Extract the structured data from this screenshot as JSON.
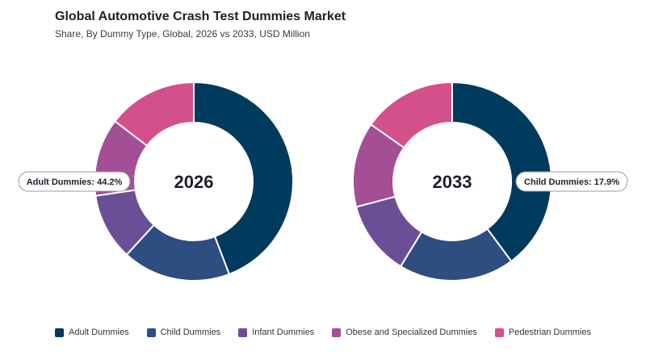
{
  "title": "Global Automotive Crash Test Dummies Market",
  "subtitle": "Share, By Dummy Type, Global, 2026 vs 2033, USD Million",
  "chart_data": {
    "type": "pie",
    "variant": "donut",
    "categories": [
      "Adult Dummies",
      "Child Dummies",
      "Infant Dummies",
      "Obese and Specialized Dummies",
      "Pedestrian Dummies"
    ],
    "colors": [
      "#003a5c",
      "#2e4d80",
      "#6a4f96",
      "#a34e95",
      "#d4508a"
    ],
    "legend_position": "bottom",
    "charts": [
      {
        "name": "2026",
        "center_label": "2026",
        "values": [
          44.2,
          17.6,
          10.9,
          12.7,
          14.6
        ],
        "callout": "Adult Dummies: 44.2%"
      },
      {
        "name": "2033",
        "center_label": "2033",
        "values": [
          37.9,
          17.9,
          11.6,
          13.2,
          14.5
        ],
        "callout": "Child Dummies: 17.9%"
      }
    ]
  }
}
